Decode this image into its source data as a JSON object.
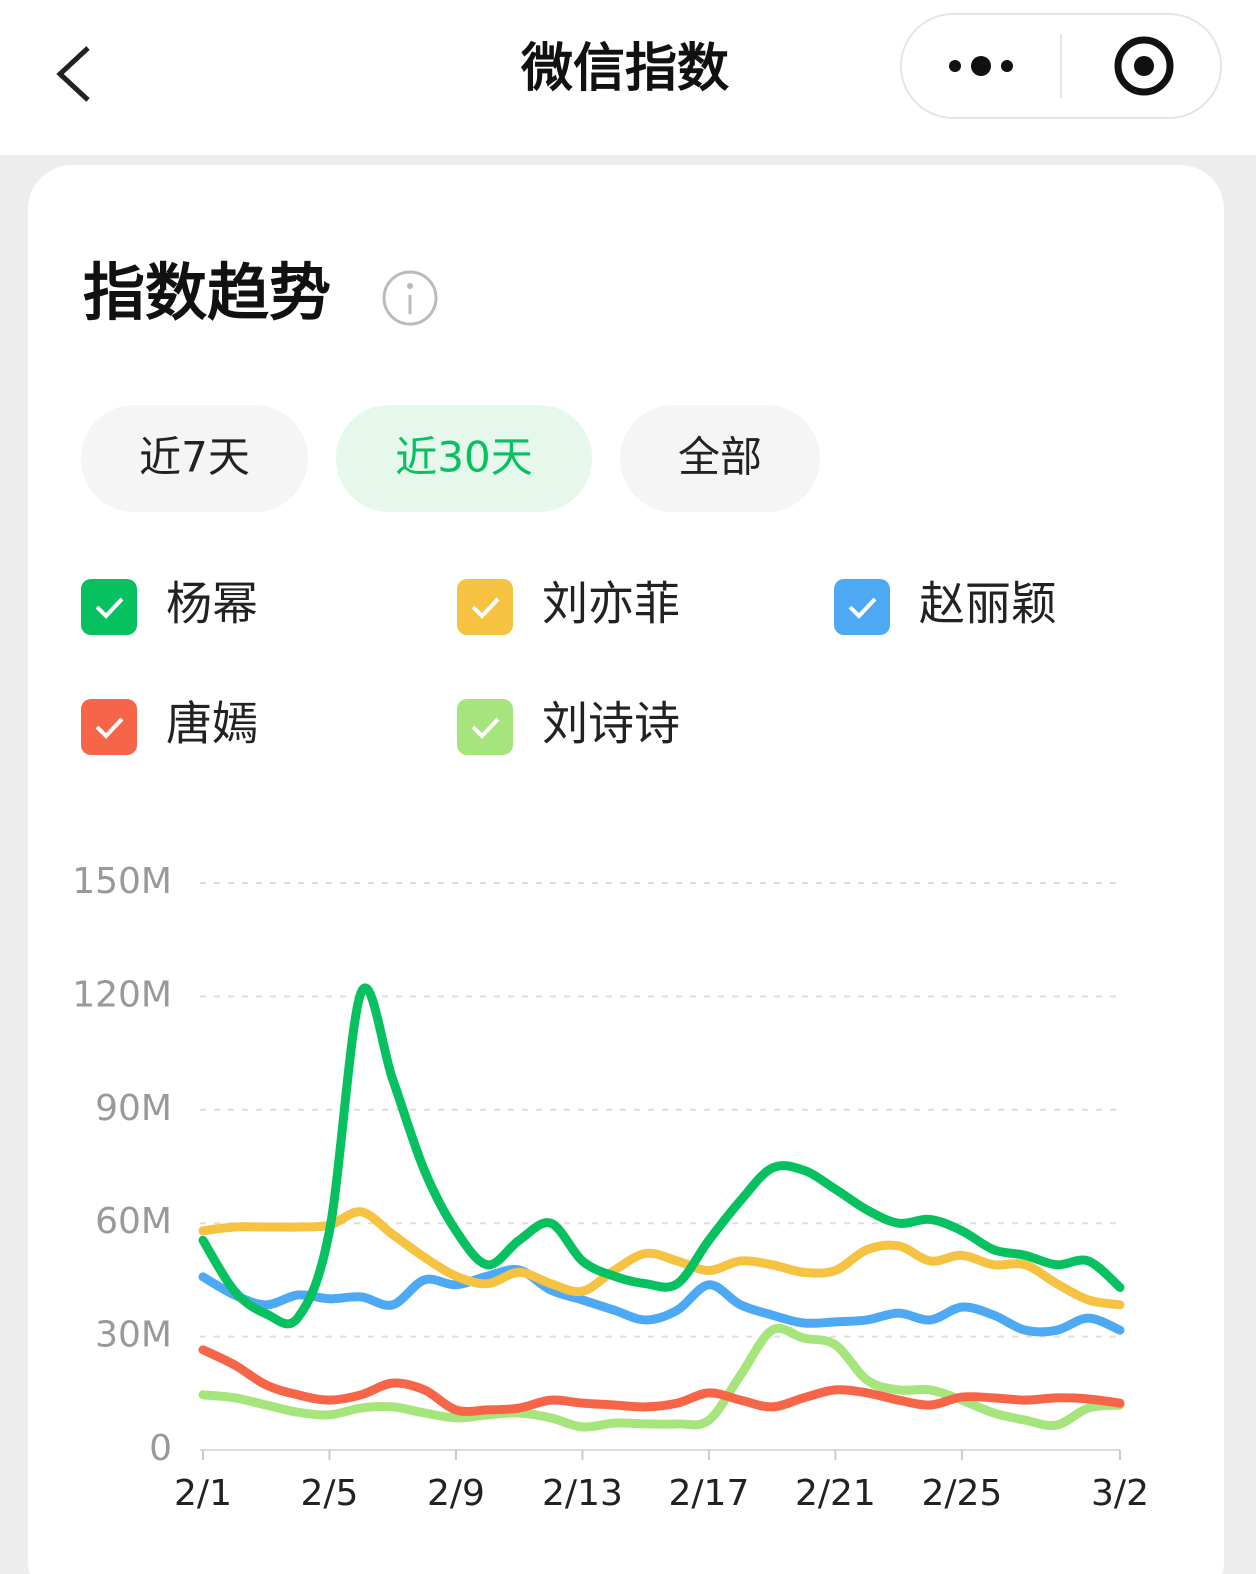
{
  "header": {
    "title": "微信指数"
  },
  "card": {
    "title": "指数趋势"
  },
  "tabs": [
    "近7天",
    "近30天",
    "全部"
  ],
  "chart_data": {
    "type": "line",
    "categories": [
      "2/1",
      null,
      null,
      null,
      "2/5",
      null,
      null,
      null,
      "2/9",
      null,
      null,
      null,
      "2/13",
      null,
      null,
      null,
      "2/17",
      null,
      null,
      null,
      "2/21",
      null,
      null,
      null,
      "2/25",
      null,
      null,
      null,
      null,
      "3/2"
    ],
    "ylim": [
      0,
      150000000
    ],
    "yticks": [
      0,
      {
        "value": 30000000,
        "label": "30M"
      },
      {
        "value": 60000000,
        "label": "60M"
      },
      {
        "value": 90000000,
        "label": "90M"
      },
      {
        "value": 120000000,
        "label": "120M"
      },
      {
        "value": 150000000,
        "label": "150M"
      }
    ],
    "grid": true,
    "legend": "top",
    "series": [
      {
        "name": "杨幂",
        "color": "#07c160",
        "values": [
          55500000,
          42000000,
          36000000,
          35000000,
          58000000,
          121000000,
          98000000,
          74000000,
          58000000,
          49000000,
          55500000,
          60000000,
          50000000,
          46000000,
          44000000,
          44000000,
          55500000,
          66000000,
          74600000,
          74000000,
          69000000,
          63500000,
          60000000,
          61000000,
          58000000,
          53000000,
          51500000,
          49000000,
          50000000,
          43000000
        ]
      },
      {
        "name": "刘亦菲",
        "color": "#f5c242",
        "values": [
          58000000,
          59000000,
          59000000,
          59000000,
          59500000,
          63000000,
          57000000,
          51000000,
          46000000,
          44000000,
          47000000,
          44000000,
          42000000,
          47500000,
          52000000,
          50000000,
          47500000,
          50000000,
          49000000,
          47000000,
          47500000,
          53000000,
          54000000,
          50000000,
          51500000,
          49000000,
          49000000,
          44000000,
          39700000,
          38400000
        ]
      },
      {
        "name": "赵丽颖",
        "color": "#4ea9f5",
        "values": [
          45800000,
          41000000,
          38400000,
          41000000,
          40000000,
          40500000,
          38400000,
          45000000,
          43700000,
          46000000,
          47600000,
          42300000,
          39700000,
          37000000,
          34400000,
          37000000,
          43700000,
          38400000,
          35700000,
          33600000,
          33900000,
          34400000,
          36200000,
          34400000,
          37800000,
          35700000,
          31700000,
          31700000,
          34900000,
          31700000
        ]
      },
      {
        "name": "唐嫣",
        "color": "#f76548",
        "values": [
          26500000,
          22500000,
          17200000,
          14600000,
          13200000,
          14600000,
          17700000,
          15900000,
          10600000,
          10600000,
          11100000,
          13200000,
          12400000,
          11900000,
          11400000,
          12400000,
          15100000,
          13200000,
          11400000,
          13800000,
          15900000,
          15100000,
          13200000,
          11900000,
          14000000,
          13800000,
          13200000,
          13800000,
          13500000,
          12400000
        ]
      },
      {
        "name": "刘诗诗",
        "color": "#a6e57c",
        "values": [
          14600000,
          13800000,
          11900000,
          10000000,
          9300000,
          11100000,
          11400000,
          9800000,
          8500000,
          9300000,
          9800000,
          8500000,
          6100000,
          7100000,
          6900000,
          6900000,
          7900000,
          19800000,
          31700000,
          29600000,
          27800000,
          18500000,
          15900000,
          15900000,
          13200000,
          9800000,
          7900000,
          6600000,
          11100000,
          11900000
        ]
      }
    ]
  }
}
